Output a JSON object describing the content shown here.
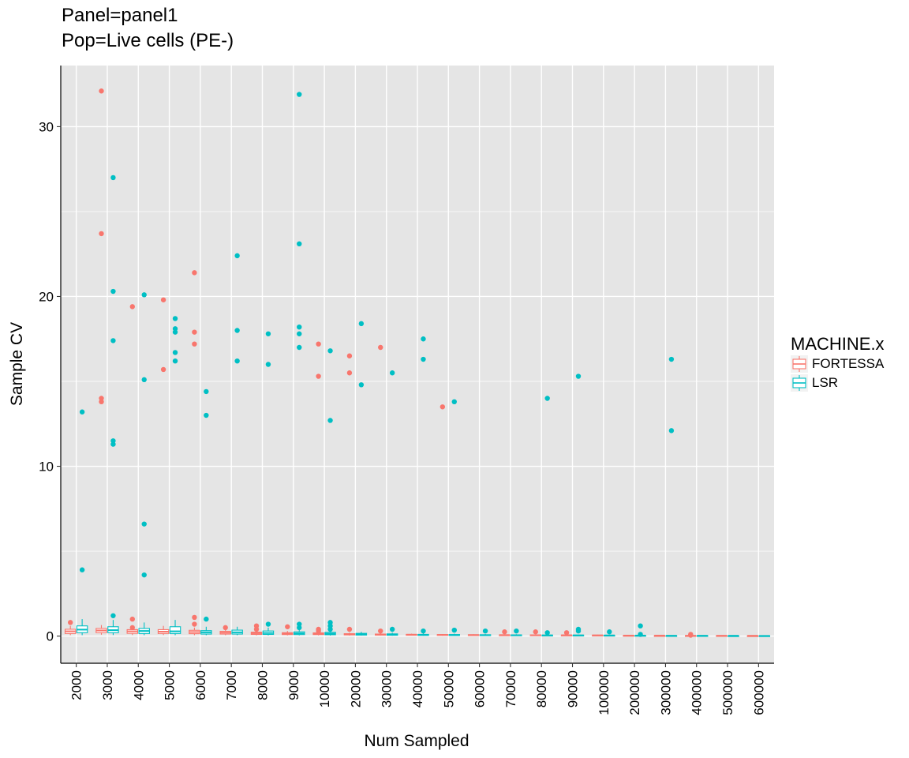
{
  "colors": {
    "fortessa": "#F8766D",
    "lsr": "#00BFC4",
    "panel": "#E5E5E5",
    "grid": "#FFFFFF"
  },
  "chart_data": {
    "type": "boxplot",
    "title_lines": [
      "Panel=panel1",
      "Pop=Live cells (PE-)"
    ],
    "xlabel": "Num Sampled",
    "ylabel": "Sample CV",
    "ylim": [
      -1.6,
      33.6
    ],
    "yticks": [
      0,
      10,
      20,
      30
    ],
    "grid": true,
    "legend": {
      "title": "MACHINE.x",
      "position": "right",
      "entries": [
        "FORTESSA",
        "LSR"
      ]
    },
    "categories": [
      "2000",
      "3000",
      "4000",
      "5000",
      "6000",
      "7000",
      "8000",
      "9000",
      "10000",
      "20000",
      "30000",
      "40000",
      "50000",
      "60000",
      "70000",
      "80000",
      "90000",
      "100000",
      "200000",
      "300000",
      "400000",
      "500000",
      "600000"
    ],
    "series": [
      {
        "name": "FORTESSA",
        "color": "#F8766D",
        "boxes": [
          [
            0.05,
            0.15,
            0.28,
            0.4,
            0.6
          ],
          [
            0.08,
            0.2,
            0.33,
            0.45,
            0.65
          ],
          [
            0.06,
            0.16,
            0.28,
            0.38,
            0.55
          ],
          [
            0.06,
            0.15,
            0.26,
            0.38,
            0.6
          ],
          [
            0.05,
            0.14,
            0.24,
            0.34,
            0.5
          ],
          [
            0.05,
            0.12,
            0.2,
            0.28,
            0.4
          ],
          [
            0.04,
            0.1,
            0.17,
            0.23,
            0.35
          ],
          [
            0.04,
            0.09,
            0.15,
            0.2,
            0.3
          ],
          [
            0.04,
            0.09,
            0.14,
            0.19,
            0.28
          ],
          [
            0.03,
            0.07,
            0.11,
            0.14,
            0.2
          ],
          [
            0.03,
            0.06,
            0.09,
            0.12,
            0.17
          ],
          [
            0.03,
            0.05,
            0.08,
            0.1,
            0.14
          ],
          [
            0.02,
            0.05,
            0.07,
            0.09,
            0.12
          ],
          [
            0.02,
            0.04,
            0.06,
            0.08,
            0.11
          ],
          [
            0.02,
            0.04,
            0.06,
            0.07,
            0.1
          ],
          [
            0.02,
            0.04,
            0.05,
            0.07,
            0.09
          ],
          [
            0.02,
            0.03,
            0.05,
            0.06,
            0.09
          ],
          [
            0.02,
            0.03,
            0.04,
            0.06,
            0.08
          ],
          [
            0.01,
            0.02,
            0.03,
            0.04,
            0.06
          ],
          [
            0.01,
            0.02,
            0.03,
            0.03,
            0.05
          ],
          [
            0.01,
            0.02,
            0.02,
            0.03,
            0.04
          ],
          [
            0.01,
            0.01,
            0.02,
            0.03,
            0.04
          ],
          [
            0.01,
            0.01,
            0.02,
            0.02,
            0.03
          ]
        ],
        "outliers": [
          [
            0.8
          ],
          [
            32.1,
            23.7,
            14.0,
            13.8
          ],
          [
            19.4,
            1.0,
            0.5
          ],
          [
            19.8,
            15.7
          ],
          [
            21.4,
            17.9,
            17.2,
            1.1,
            0.7
          ],
          [
            0.5
          ],
          [
            0.6,
            0.4
          ],
          [
            0.55
          ],
          [
            17.2,
            15.3,
            0.4,
            0.3
          ],
          [
            16.5,
            15.5,
            0.4
          ],
          [
            17.0,
            0.3
          ],
          [],
          [
            13.5
          ],
          [],
          [
            0.25
          ],
          [
            0.25
          ],
          [
            0.2
          ],
          [],
          [],
          [],
          [
            0.1,
            0.05
          ],
          [],
          []
        ]
      },
      {
        "name": "LSR",
        "color": "#00BFC4",
        "boxes": [
          [
            0.05,
            0.2,
            0.38,
            0.6,
            1.0
          ],
          [
            0.06,
            0.2,
            0.35,
            0.55,
            0.95
          ],
          [
            0.05,
            0.15,
            0.3,
            0.45,
            0.8
          ],
          [
            0.05,
            0.15,
            0.28,
            0.55,
            0.95
          ],
          [
            0.05,
            0.12,
            0.22,
            0.32,
            0.55
          ],
          [
            0.05,
            0.12,
            0.22,
            0.35,
            0.55
          ],
          [
            0.04,
            0.1,
            0.18,
            0.3,
            0.5
          ],
          [
            0.04,
            0.09,
            0.16,
            0.25,
            0.4
          ],
          [
            0.03,
            0.08,
            0.14,
            0.22,
            0.35
          ],
          [
            0.03,
            0.06,
            0.11,
            0.16,
            0.25
          ],
          [
            0.02,
            0.05,
            0.09,
            0.13,
            0.2
          ],
          [
            0.02,
            0.04,
            0.07,
            0.1,
            0.16
          ],
          [
            0.02,
            0.04,
            0.06,
            0.09,
            0.14
          ],
          [
            0.02,
            0.03,
            0.05,
            0.08,
            0.12
          ],
          [
            0.02,
            0.03,
            0.05,
            0.07,
            0.11
          ],
          [
            0.02,
            0.03,
            0.04,
            0.06,
            0.1
          ],
          [
            0.01,
            0.03,
            0.04,
            0.06,
            0.09
          ],
          [
            0.01,
            0.02,
            0.04,
            0.05,
            0.08
          ],
          [
            0.01,
            0.02,
            0.03,
            0.04,
            0.06
          ],
          [
            0.01,
            0.01,
            0.02,
            0.03,
            0.05
          ],
          [
            0.01,
            0.01,
            0.02,
            0.03,
            0.04
          ],
          [
            0.01,
            0.01,
            0.02,
            0.02,
            0.03
          ],
          [
            0.01,
            0.01,
            0.01,
            0.02,
            0.03
          ]
        ],
        "outliers": [
          [
            13.2,
            3.9
          ],
          [
            27.0,
            20.3,
            17.4,
            11.5,
            11.3,
            1.2
          ],
          [
            20.1,
            15.1,
            6.6,
            3.6
          ],
          [
            18.7,
            18.1,
            17.9,
            16.7,
            16.2
          ],
          [
            14.4,
            13.0,
            1.0
          ],
          [
            22.4,
            18.0,
            16.2
          ],
          [
            17.8,
            16.0,
            0.7
          ],
          [
            31.9,
            23.1,
            18.2,
            17.8,
            17.0,
            0.7,
            0.5
          ],
          [
            16.8,
            12.7,
            0.8,
            0.6,
            0.4
          ],
          [
            18.4,
            14.8
          ],
          [
            15.5,
            0.4
          ],
          [
            17.5,
            16.3,
            0.3
          ],
          [
            13.8,
            0.35
          ],
          [
            0.3
          ],
          [
            0.3
          ],
          [
            14.0,
            0.2
          ],
          [
            15.3,
            0.4,
            0.3
          ],
          [
            0.25
          ],
          [
            0.6,
            0.1
          ],
          [
            16.3,
            12.1
          ],
          [],
          [],
          []
        ]
      }
    ]
  }
}
